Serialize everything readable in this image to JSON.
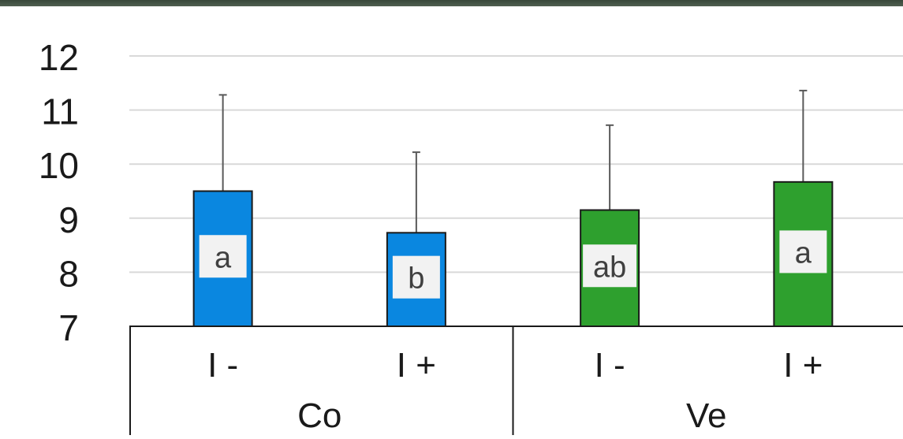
{
  "chart_data": {
    "type": "bar",
    "categories": [
      "I -",
      "I +",
      "I -",
      "I +"
    ],
    "groups": [
      "Co",
      "Ve"
    ],
    "group_membership": [
      0,
      0,
      1,
      1
    ],
    "values": [
      9.5,
      8.73,
      9.15,
      9.67
    ],
    "error_upper": [
      11.28,
      10.22,
      10.72,
      11.36
    ],
    "significance_labels": [
      "a",
      "b",
      "ab",
      "a"
    ],
    "bar_colors": [
      "#0a87e0",
      "#0a87e0",
      "#2ea02e",
      "#2ea02e"
    ],
    "y_ticks": [
      "7",
      "8",
      "9",
      "10",
      "11",
      "12"
    ],
    "ylim": [
      7,
      12
    ],
    "grid": true,
    "title": "",
    "xlabel": "",
    "ylabel": ""
  }
}
